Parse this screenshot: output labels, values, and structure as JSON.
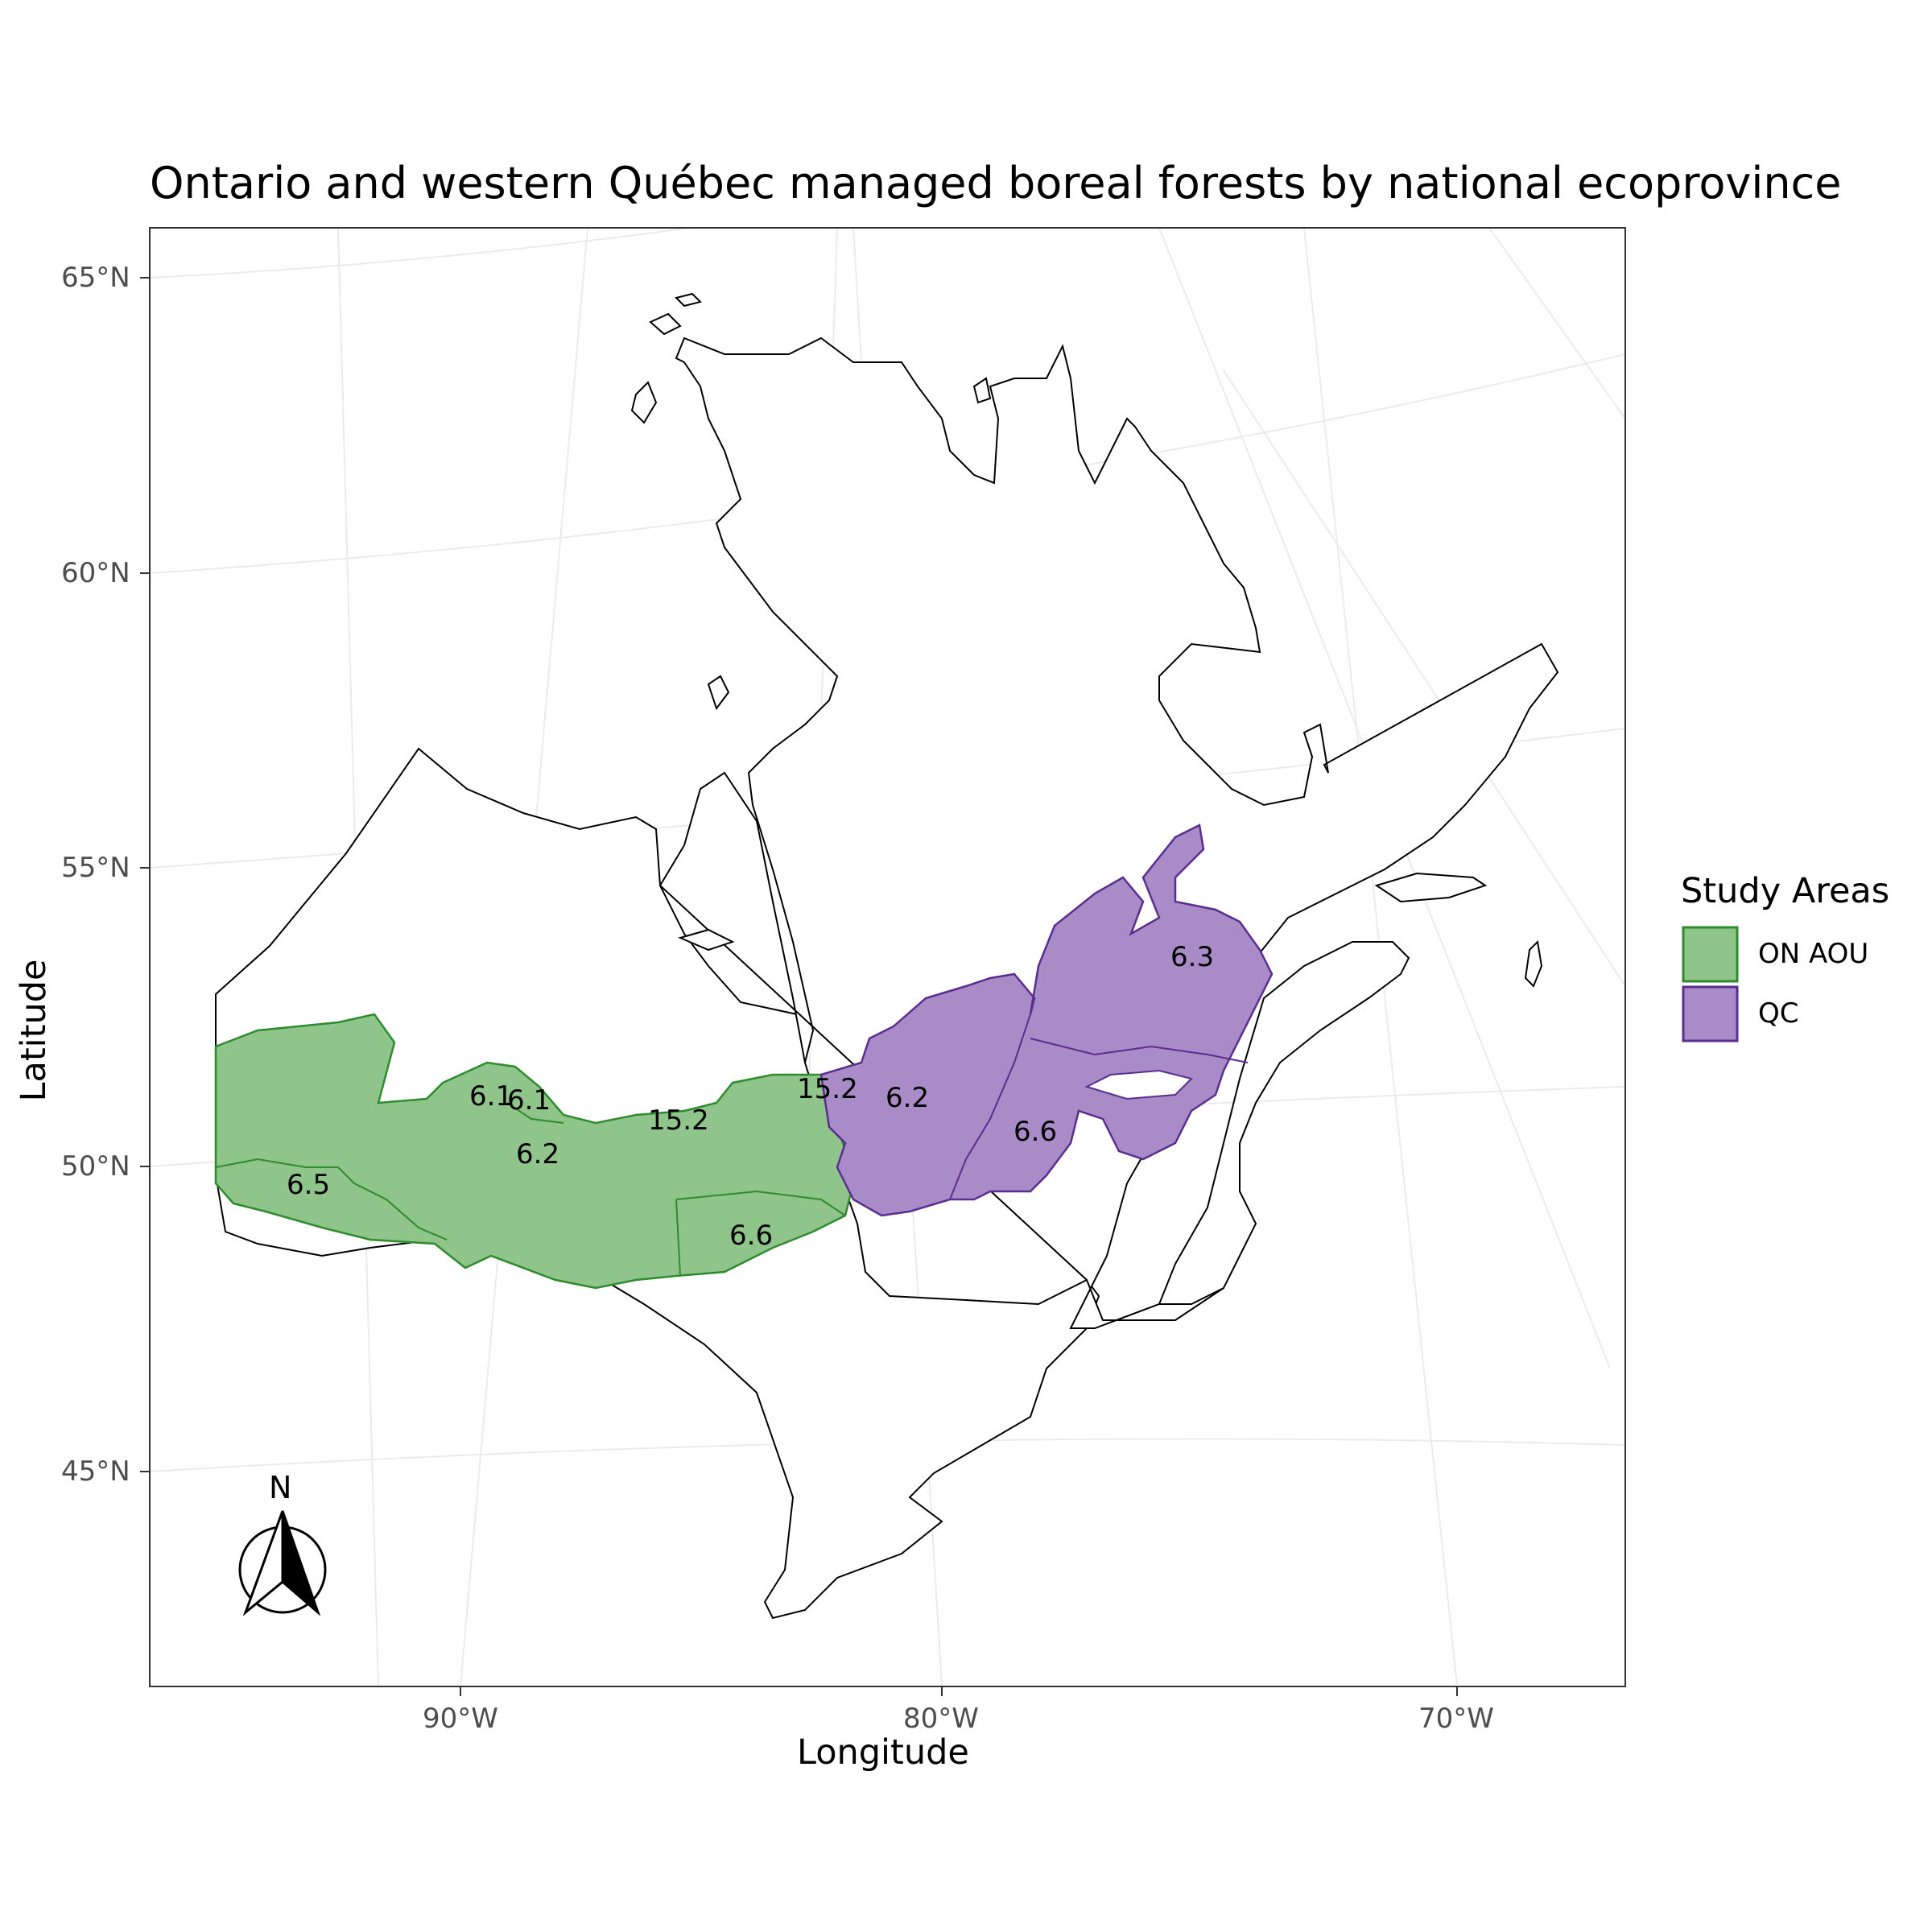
{
  "title": "Ontario and western Québec managed boreal forests by national ecoprovince",
  "axes": {
    "x_title": "Longitude",
    "y_title": "Latitude",
    "x_ticks": [
      "90°W",
      "80°W",
      "70°W"
    ],
    "y_ticks": [
      "65°N",
      "60°N",
      "55°N",
      "50°N",
      "45°N"
    ]
  },
  "legend": {
    "title": "Study Areas",
    "items": [
      {
        "label": "ON AOU",
        "fill": "#8fc48a",
        "stroke": "#2e8b2e"
      },
      {
        "label": "QC",
        "fill": "#a88bc7",
        "stroke": "#5a2d91"
      }
    ]
  },
  "region_labels": [
    {
      "text": "6.1",
      "area": "ON AOU"
    },
    {
      "text": "6.1",
      "area": "ON AOU"
    },
    {
      "text": "6.2",
      "area": "ON AOU"
    },
    {
      "text": "6.5",
      "area": "ON AOU"
    },
    {
      "text": "15.2",
      "area": "ON AOU"
    },
    {
      "text": "6.6",
      "area": "ON AOU"
    },
    {
      "text": "15.2",
      "area": "QC"
    },
    {
      "text": "6.2",
      "area": "QC"
    },
    {
      "text": "6.6",
      "area": "QC"
    },
    {
      "text": "6.3",
      "area": "QC"
    }
  ],
  "north_arrow": {
    "letter": "N"
  },
  "colors": {
    "graticule": "#ebebeb",
    "outline": "#000000",
    "panel_border": "#333333"
  }
}
